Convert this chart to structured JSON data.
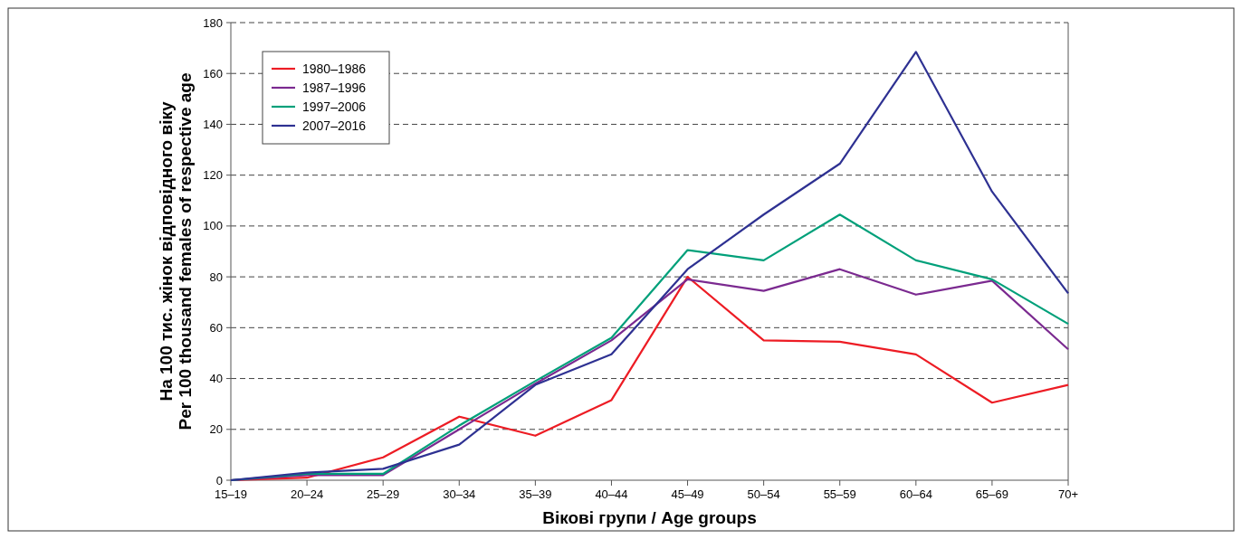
{
  "chart_data": {
    "type": "line",
    "xlabel": "Вікові групи / Age groups",
    "ylabel": "На 100 тис. жінок відповідного віку\nPer 100 thousand females of respective age",
    "categories": [
      "15–19",
      "20–24",
      "25–29",
      "30–34",
      "35–39",
      "40–44",
      "45–49",
      "50–54",
      "55–59",
      "60–64",
      "65–69",
      "70+"
    ],
    "series": [
      {
        "name": "1980–1986",
        "color": "#ed1c24",
        "values": [
          0,
          1,
          9,
          25,
          17.5,
          31.5,
          80,
          55,
          54.5,
          49.5,
          30.5,
          37.5
        ]
      },
      {
        "name": "1987–1996",
        "color": "#7b2a90",
        "values": [
          0,
          2,
          2,
          20,
          38,
          55,
          79,
          74.5,
          83,
          73,
          78.5,
          51.5
        ]
      },
      {
        "name": "1997–2006",
        "color": "#00a07a",
        "values": [
          0,
          2.5,
          2.5,
          21.5,
          39,
          56,
          90.5,
          86.5,
          104.5,
          86.5,
          79,
          61.5
        ]
      },
      {
        "name": "2007–2016",
        "color": "#2e3192",
        "values": [
          0,
          3,
          4.5,
          14,
          37.5,
          49.5,
          83,
          104.5,
          124.5,
          168.5,
          113.5,
          73.5
        ]
      }
    ],
    "ylim": [
      0,
      180
    ],
    "yticks": [
      0,
      20,
      40,
      60,
      80,
      100,
      120,
      140,
      160,
      180
    ],
    "grid": "y",
    "line_style": "solid",
    "marker": "none",
    "legend": "top left"
  }
}
